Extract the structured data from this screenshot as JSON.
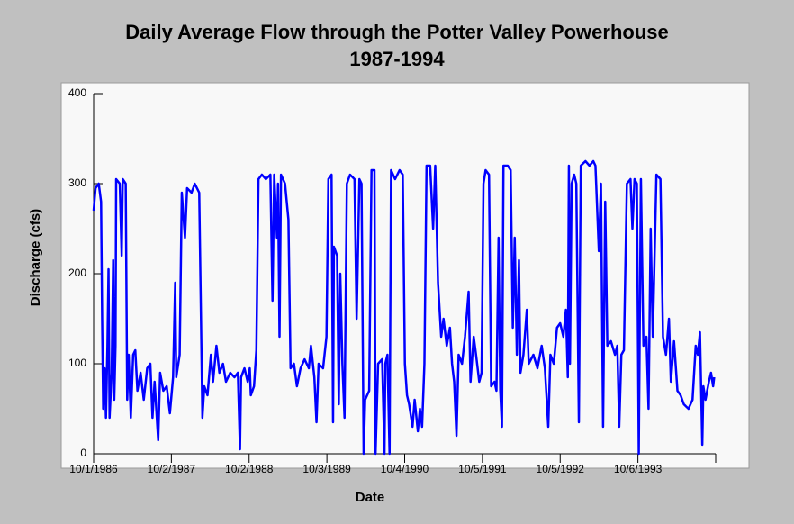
{
  "chart_data": {
    "type": "line",
    "title": "Daily Average Flow through the Potter Valley Powerhouse",
    "subtitle": "1987-1994",
    "x_label": "Date",
    "y_label": "Discharge (cfs)",
    "xlim": [
      "1986-10-01",
      "1994-10-07"
    ],
    "xticks": [
      {
        "value": "1986-10-01",
        "label": "10/1/1986"
      },
      {
        "value": "1987-10-02",
        "label": "10/2/1987"
      },
      {
        "value": "1988-10-02",
        "label": "10/2/1988"
      },
      {
        "value": "1989-10-03",
        "label": "10/3/1989"
      },
      {
        "value": "1990-10-04",
        "label": "10/4/1990"
      },
      {
        "value": "1991-10-05",
        "label": "10/5/1991"
      },
      {
        "value": "1992-10-05",
        "label": "10/5/1992"
      },
      {
        "value": "1993-10-06",
        "label": "10/6/1993"
      }
    ],
    "ylim": [
      0,
      400
    ],
    "yticks": [
      0,
      100,
      200,
      300,
      400
    ],
    "series": [
      {
        "name": "Discharge",
        "color": "#0000ff",
        "x": [
          "1986-10-01",
          "1986-10-10",
          "1986-10-25",
          "1986-11-05",
          "1986-11-10",
          "1986-11-15",
          "1986-11-22",
          "1986-11-28",
          "1986-12-05",
          "1986-12-10",
          "1986-12-15",
          "1986-12-25",
          "1987-01-01",
          "1987-01-06",
          "1987-01-12",
          "1987-01-15",
          "1987-02-01",
          "1987-02-10",
          "1987-02-15",
          "1987-03-01",
          "1987-03-08",
          "1987-03-15",
          "1987-03-25",
          "1987-04-05",
          "1987-04-15",
          "1987-04-25",
          "1987-05-10",
          "1987-05-25",
          "1987-06-10",
          "1987-06-25",
          "1987-07-05",
          "1987-07-15",
          "1987-08-01",
          "1987-08-10",
          "1987-08-25",
          "1987-09-10",
          "1987-09-25",
          "1987-10-10",
          "1987-10-20",
          "1987-10-25",
          "1987-11-10",
          "1987-11-20",
          "1987-12-05",
          "1987-12-15",
          "1988-01-05",
          "1988-01-20",
          "1988-02-10",
          "1988-02-25",
          "1988-03-05",
          "1988-03-20",
          "1988-04-05",
          "1988-04-15",
          "1988-05-01",
          "1988-05-15",
          "1988-06-01",
          "1988-06-15",
          "1988-07-05",
          "1988-07-25",
          "1988-08-10",
          "1988-08-20",
          "1988-08-25",
          "1988-09-10",
          "1988-09-25",
          "1988-10-05",
          "1988-10-10",
          "1988-10-25",
          "1988-11-05",
          "1988-11-15",
          "1988-12-01",
          "1988-12-20",
          "1989-01-10",
          "1989-01-20",
          "1989-01-28",
          "1989-02-10",
          "1989-02-15",
          "1989-02-22",
          "1989-03-01",
          "1989-03-20",
          "1989-04-05",
          "1989-04-15",
          "1989-05-01",
          "1989-05-15",
          "1989-06-01",
          "1989-06-20",
          "1989-07-10",
          "1989-07-20",
          "1989-08-05",
          "1989-08-15",
          "1989-08-25",
          "1989-09-15",
          "1989-10-01",
          "1989-10-10",
          "1989-10-25",
          "1989-11-01",
          "1989-11-05",
          "1989-11-20",
          "1989-11-28",
          "1989-12-05",
          "1989-12-15",
          "1989-12-25",
          "1990-01-05",
          "1990-01-20",
          "1990-02-10",
          "1990-02-20",
          "1990-03-05",
          "1990-03-15",
          "1990-03-25",
          "1990-04-01",
          "1990-04-20",
          "1990-05-01",
          "1990-05-15",
          "1990-05-20",
          "1990-06-01",
          "1990-06-20",
          "1990-07-01",
          "1990-07-05",
          "1990-07-15",
          "1990-07-25",
          "1990-08-01",
          "1990-08-20",
          "1990-09-10",
          "1990-09-25",
          "1990-10-05",
          "1990-10-15",
          "1990-10-25",
          "1990-11-10",
          "1990-11-20",
          "1990-12-05",
          "1990-12-15",
          "1990-12-25",
          "1991-01-05",
          "1991-01-15",
          "1991-02-01",
          "1991-02-15",
          "1991-02-25",
          "1991-03-10",
          "1991-03-25",
          "1991-04-05",
          "1991-04-20",
          "1991-05-05",
          "1991-05-15",
          "1991-05-25",
          "1991-06-05",
          "1991-06-15",
          "1991-07-01",
          "1991-07-15",
          "1991-08-01",
          "1991-08-10",
          "1991-08-25",
          "1991-09-05",
          "1991-09-20",
          "1991-10-01",
          "1991-10-10",
          "1991-10-20",
          "1991-11-05",
          "1991-11-15",
          "1991-12-01",
          "1991-12-10",
          "1991-12-20",
          "1991-12-28",
          "1992-01-05",
          "1992-01-12",
          "1992-02-01",
          "1992-02-15",
          "1992-02-25",
          "1992-03-05",
          "1992-03-15",
          "1992-03-25",
          "1992-04-01",
          "1992-04-15",
          "1992-05-01",
          "1992-05-10",
          "1992-06-01",
          "1992-06-20",
          "1992-07-10",
          "1992-07-25",
          "1992-08-10",
          "1992-08-20",
          "1992-09-05",
          "1992-09-20",
          "1992-10-05",
          "1992-10-20",
          "1992-11-01",
          "1992-11-10",
          "1992-11-15",
          "1992-11-20",
          "1992-11-28",
          "1992-12-10",
          "1992-12-20",
          "1993-01-01",
          "1993-01-10",
          "1993-02-01",
          "1993-02-20",
          "1993-03-10",
          "1993-03-20",
          "1993-04-05",
          "1993-04-15",
          "1993-04-25",
          "1993-05-05",
          "1993-05-15",
          "1993-06-01",
          "1993-06-20",
          "1993-07-01",
          "1993-07-10",
          "1993-07-20",
          "1993-08-01",
          "1993-08-15",
          "1993-09-01",
          "1993-09-10",
          "1993-09-20",
          "1993-10-01",
          "1993-10-10",
          "1993-10-20",
          "1993-11-01",
          "1993-11-15",
          "1993-11-25",
          "1993-12-05",
          "1993-12-15",
          "1994-01-01",
          "1994-01-20",
          "1994-02-01",
          "1994-02-15",
          "1994-03-01",
          "1994-03-10",
          "1994-03-25",
          "1994-04-10",
          "1994-04-25",
          "1994-05-10",
          "1994-06-01",
          "1994-06-20",
          "1994-07-05",
          "1994-07-15",
          "1994-07-25",
          "1994-08-05",
          "1994-08-10",
          "1994-08-20",
          "1994-09-05",
          "1994-09-15",
          "1994-09-25",
          "1994-09-30"
        ],
        "values": [
          270,
          295,
          300,
          280,
          150,
          50,
          95,
          40,
          120,
          205,
          40,
          90,
          215,
          60,
          120,
          305,
          300,
          220,
          305,
          300,
          60,
          110,
          40,
          110,
          115,
          70,
          90,
          60,
          95,
          100,
          40,
          80,
          15,
          90,
          70,
          75,
          45,
          85,
          190,
          85,
          110,
          290,
          240,
          295,
          290,
          300,
          290,
          40,
          75,
          65,
          110,
          80,
          120,
          90,
          100,
          80,
          90,
          85,
          90,
          5,
          85,
          95,
          80,
          95,
          65,
          75,
          115,
          305,
          310,
          305,
          310,
          170,
          310,
          240,
          300,
          130,
          310,
          300,
          260,
          95,
          100,
          75,
          95,
          105,
          95,
          120,
          85,
          35,
          100,
          95,
          130,
          305,
          310,
          35,
          230,
          220,
          55,
          200,
          100,
          40,
          300,
          310,
          305,
          150,
          305,
          300,
          0,
          60,
          70,
          315,
          315,
          0,
          100,
          105,
          0,
          100,
          110,
          0,
          315,
          305,
          315,
          310,
          100,
          65,
          55,
          30,
          60,
          25,
          50,
          30,
          100,
          320,
          320,
          250,
          320,
          190,
          130,
          150,
          120,
          140,
          100,
          80,
          20,
          110,
          100,
          130,
          180,
          80,
          130,
          110,
          80,
          90,
          300,
          315,
          310,
          75,
          80,
          70,
          240,
          70,
          30,
          320,
          320,
          315,
          140,
          240,
          110,
          215,
          90,
          110,
          160,
          100,
          110,
          95,
          120,
          95,
          30,
          110,
          100,
          140,
          145,
          130,
          160,
          85,
          320,
          100,
          300,
          310,
          300,
          35,
          320,
          325,
          320,
          325,
          320,
          225,
          300,
          30,
          280,
          120,
          125,
          110,
          120,
          30,
          110,
          115,
          300,
          305,
          250,
          305,
          300,
          0,
          305,
          120,
          130,
          50,
          250,
          130,
          310,
          305,
          130,
          110,
          150,
          80,
          125,
          70,
          65,
          55,
          50,
          60,
          120,
          110,
          135,
          10,
          75,
          60,
          80,
          90,
          75,
          85
        ]
      }
    ]
  }
}
